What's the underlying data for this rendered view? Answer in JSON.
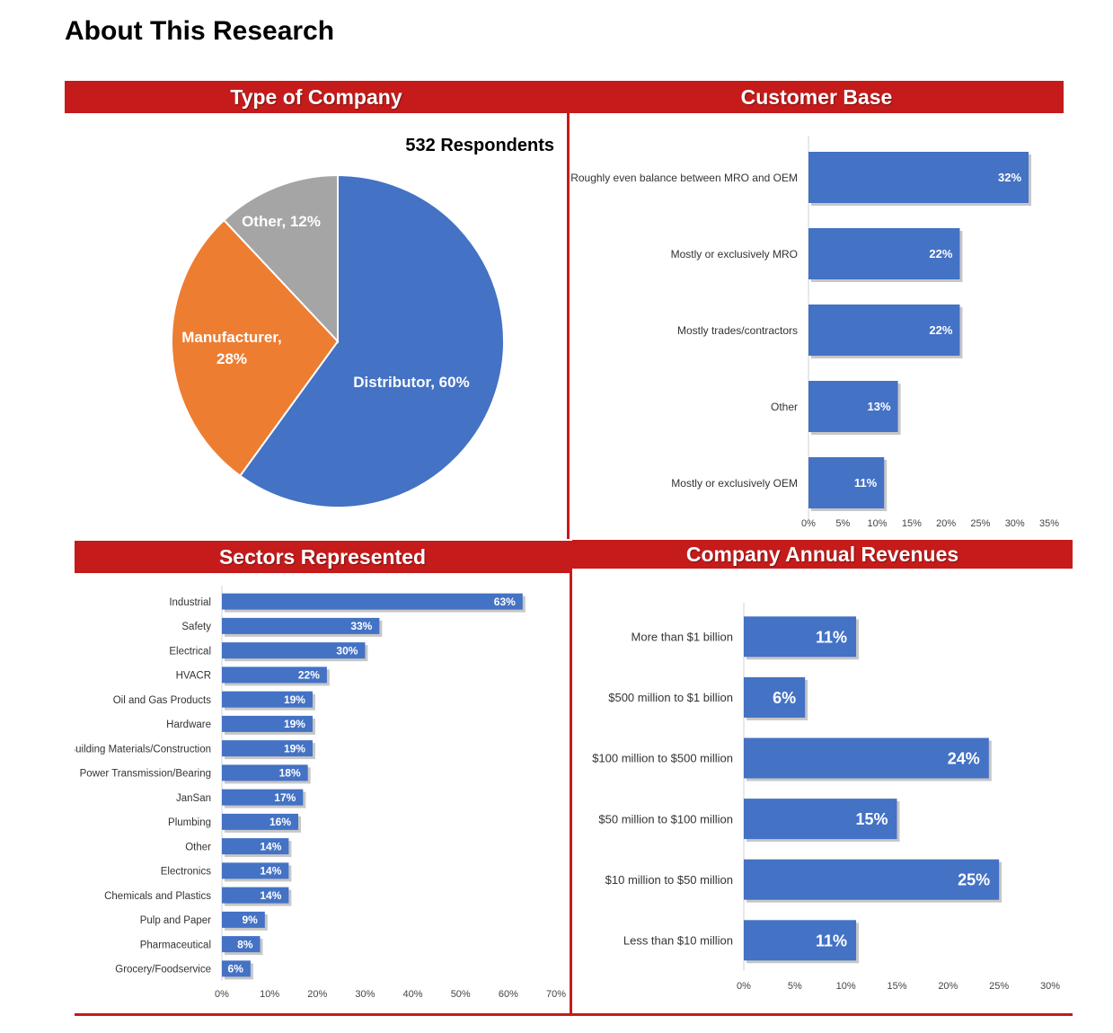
{
  "page": {
    "title": "About This Research"
  },
  "colors": {
    "accent": "#c51b1b",
    "bar": "#4472c4",
    "distributor": "#4472c4",
    "manufacturer": "#ed7d31",
    "other": "#a5a5a5"
  },
  "chart_data": [
    {
      "type": "pie",
      "title": "Type of Company",
      "subtitle": "532 Respondents",
      "slices": [
        {
          "label": "Distributor",
          "value": 60,
          "data_label": "Distributor, 60%"
        },
        {
          "label": "Manufacturer",
          "value": 28,
          "data_label": "Manufacturer, 28%"
        },
        {
          "label": "Other",
          "value": 12,
          "data_label": "Other, 12%"
        }
      ]
    },
    {
      "type": "bar",
      "orientation": "horizontal",
      "title": "Customer Base",
      "categories": [
        "Roughly even balance between MRO and OEM",
        "Mostly or exclusively MRO",
        "Mostly trades/contractors",
        "Other",
        "Mostly or exclusively OEM"
      ],
      "values": [
        32,
        22,
        22,
        13,
        11
      ],
      "xlim": [
        0,
        35
      ],
      "xticks": [
        "0%",
        "5%",
        "10%",
        "15%",
        "20%",
        "25%",
        "30%",
        "35%"
      ],
      "grid": false
    },
    {
      "type": "bar",
      "orientation": "horizontal",
      "title": "Sectors Represented",
      "categories": [
        "Industrial",
        "Safety",
        "Electrical",
        "HVACR",
        "Oil and Gas Products",
        "Hardware",
        "Building Materials/Construction",
        "Power Transmission/Bearing",
        "JanSan",
        "Plumbing",
        "Other",
        "Electronics",
        "Chemicals and Plastics",
        "Pulp and Paper",
        "Pharmaceutical",
        "Grocery/Foodservice"
      ],
      "values": [
        63,
        33,
        30,
        22,
        19,
        19,
        19,
        18,
        17,
        16,
        14,
        14,
        14,
        9,
        8,
        6
      ],
      "xlim": [
        0,
        70
      ],
      "xticks": [
        "0%",
        "10%",
        "20%",
        "30%",
        "40%",
        "50%",
        "60%",
        "70%"
      ],
      "grid": false
    },
    {
      "type": "bar",
      "orientation": "horizontal",
      "title": "Company Annual Revenues",
      "categories": [
        "More than $1 billion",
        "$500 million to $1 billion",
        "$100 million to $500 million",
        "$50 million to $100 million",
        "$10 million to $50 million",
        "Less than $10 million"
      ],
      "values": [
        11,
        6,
        24,
        15,
        25,
        11
      ],
      "xlim": [
        0,
        30
      ],
      "xticks": [
        "0%",
        "5%",
        "10%",
        "15%",
        "20%",
        "25%",
        "30%"
      ],
      "grid": false
    }
  ]
}
